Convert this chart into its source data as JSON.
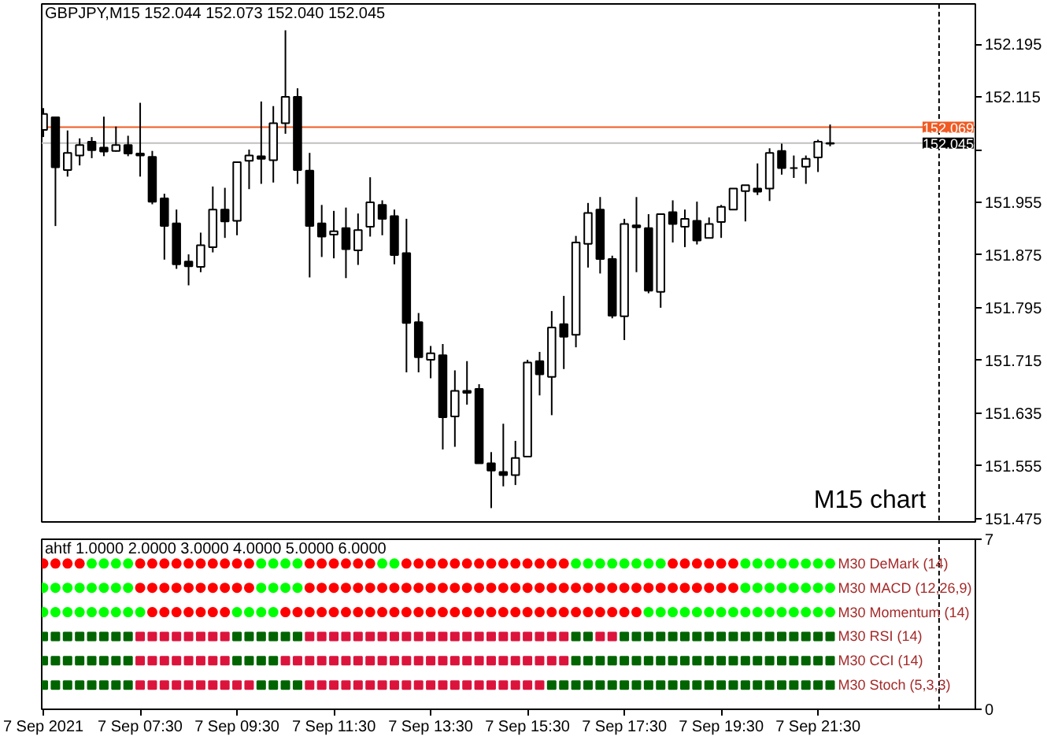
{
  "chart_data": [
    {
      "type": "candlestick",
      "title": "GBPJPY,M15  152.044 152.073 152.040 152.045",
      "x": [
        "2021-09-07T05:30",
        "2021-09-07T05:45",
        "2021-09-07T06:00",
        "2021-09-07T06:15",
        "2021-09-07T06:30",
        "2021-09-07T06:45",
        "2021-09-07T07:00",
        "2021-09-07T07:15",
        "2021-09-07T07:30",
        "2021-09-07T07:45",
        "2021-09-07T08:00",
        "2021-09-07T08:15",
        "2021-09-07T08:30",
        "2021-09-07T08:45",
        "2021-09-07T09:00",
        "2021-09-07T09:15",
        "2021-09-07T09:30",
        "2021-09-07T09:45",
        "2021-09-07T10:00",
        "2021-09-07T10:15",
        "2021-09-07T10:30",
        "2021-09-07T10:45",
        "2021-09-07T11:00",
        "2021-09-07T11:15",
        "2021-09-07T11:30",
        "2021-09-07T11:45",
        "2021-09-07T12:00",
        "2021-09-07T12:15",
        "2021-09-07T12:30",
        "2021-09-07T12:45",
        "2021-09-07T13:00",
        "2021-09-07T13:15",
        "2021-09-07T13:30",
        "2021-09-07T13:45",
        "2021-09-07T14:00",
        "2021-09-07T14:15",
        "2021-09-07T14:30",
        "2021-09-07T14:45",
        "2021-09-07T15:00",
        "2021-09-07T15:15",
        "2021-09-07T15:30",
        "2021-09-07T15:45",
        "2021-09-07T16:00",
        "2021-09-07T16:15",
        "2021-09-07T16:30",
        "2021-09-07T16:45",
        "2021-09-07T17:00",
        "2021-09-07T17:15",
        "2021-09-07T17:30",
        "2021-09-07T17:45",
        "2021-09-07T18:00",
        "2021-09-07T18:15",
        "2021-09-07T18:30",
        "2021-09-07T18:45",
        "2021-09-07T19:00",
        "2021-09-07T19:15",
        "2021-09-07T19:30",
        "2021-09-07T19:45",
        "2021-09-07T20:00",
        "2021-09-07T20:15",
        "2021-09-07T20:30",
        "2021-09-07T20:45",
        "2021-09-07T21:00",
        "2021-09-07T21:15",
        "2021-09-07T21:30",
        "2021-09-07T21:45"
      ],
      "ohlc": [
        [
          152.065,
          152.098,
          152.054,
          152.089
        ],
        [
          152.084,
          152.084,
          151.919,
          152.008
        ],
        [
          152.004,
          152.064,
          151.994,
          152.03
        ],
        [
          152.026,
          152.052,
          152.011,
          152.042
        ],
        [
          152.047,
          152.054,
          152.022,
          152.034
        ],
        [
          152.038,
          152.085,
          152.025,
          152.032
        ],
        [
          152.033,
          152.07,
          152.032,
          152.042
        ],
        [
          152.042,
          152.056,
          152.025,
          152.029
        ],
        [
          152.029,
          152.106,
          151.994,
          152.026
        ],
        [
          152.024,
          152.033,
          151.952,
          151.956
        ],
        [
          151.961,
          151.968,
          151.868,
          151.919
        ],
        [
          151.923,
          151.944,
          151.854,
          151.861
        ],
        [
          151.865,
          151.876,
          151.829,
          151.858
        ],
        [
          151.857,
          151.909,
          151.849,
          151.89
        ],
        [
          151.887,
          151.979,
          151.879,
          151.944
        ],
        [
          151.944,
          151.977,
          151.901,
          151.926
        ],
        [
          151.927,
          152.016,
          151.905,
          152.016
        ],
        [
          152.018,
          152.035,
          151.975,
          152.026
        ],
        [
          152.025,
          152.108,
          151.983,
          152.021
        ],
        [
          152.019,
          152.101,
          151.985,
          152.075
        ],
        [
          152.075,
          152.216,
          152.059,
          152.115
        ],
        [
          152.115,
          152.128,
          151.983,
          152.004
        ],
        [
          152.003,
          152.03,
          151.841,
          151.919
        ],
        [
          151.923,
          151.951,
          151.872,
          151.903
        ],
        [
          151.906,
          151.942,
          151.87,
          151.911
        ],
        [
          151.916,
          151.947,
          151.84,
          151.884
        ],
        [
          151.882,
          151.938,
          151.86,
          151.913
        ],
        [
          151.918,
          151.993,
          151.903,
          151.955
        ],
        [
          151.951,
          151.958,
          151.905,
          151.93
        ],
        [
          151.934,
          151.944,
          151.861,
          151.875
        ],
        [
          151.878,
          151.93,
          151.697,
          151.772
        ],
        [
          151.773,
          151.787,
          151.697,
          151.72
        ],
        [
          151.716,
          151.737,
          151.688,
          151.726
        ],
        [
          151.723,
          151.74,
          151.58,
          151.629
        ],
        [
          151.63,
          151.7,
          151.584,
          151.669
        ],
        [
          151.669,
          151.714,
          151.648,
          151.666
        ],
        [
          151.672,
          151.679,
          151.559,
          151.559
        ],
        [
          151.559,
          151.576,
          151.491,
          151.548
        ],
        [
          151.546,
          151.619,
          151.524,
          151.541
        ],
        [
          151.541,
          151.593,
          151.526,
          151.567
        ],
        [
          151.569,
          151.716,
          151.569,
          151.712
        ],
        [
          151.714,
          151.728,
          151.662,
          151.694
        ],
        [
          151.69,
          151.79,
          151.632,
          151.765
        ],
        [
          151.77,
          151.813,
          151.702,
          151.751
        ],
        [
          151.754,
          151.904,
          151.735,
          151.894
        ],
        [
          151.892,
          151.954,
          151.856,
          151.939
        ],
        [
          151.944,
          151.963,
          151.847,
          151.869
        ],
        [
          151.869,
          151.874,
          151.779,
          151.783
        ],
        [
          151.782,
          151.93,
          151.746,
          151.922
        ],
        [
          151.92,
          151.963,
          151.849,
          151.917
        ],
        [
          151.916,
          151.937,
          151.817,
          151.821
        ],
        [
          151.819,
          151.937,
          151.795,
          151.937
        ],
        [
          151.94,
          151.958,
          151.894,
          151.922
        ],
        [
          151.918,
          151.944,
          151.887,
          151.93
        ],
        [
          151.927,
          151.956,
          151.891,
          151.897
        ],
        [
          151.901,
          151.932,
          151.9,
          151.922
        ],
        [
          151.925,
          151.951,
          151.901,
          151.948
        ],
        [
          151.944,
          151.976,
          151.944,
          151.976
        ],
        [
          151.972,
          151.981,
          151.926,
          151.981
        ],
        [
          151.976,
          152.014,
          151.966,
          151.971
        ],
        [
          151.976,
          152.037,
          151.957,
          152.03
        ],
        [
          152.033,
          152.044,
          151.997,
          152.007
        ],
        [
          152.007,
          152.026,
          151.992,
          152.007
        ],
        [
          152.009,
          152.026,
          151.983,
          152.021
        ],
        [
          152.023,
          152.05,
          152.001,
          152.047
        ],
        [
          152.044,
          152.073,
          152.04,
          152.045
        ]
      ],
      "colors": [
        "#ffffff",
        "#000000",
        "#ffffff",
        "#ffffff",
        "#000000",
        "#000000",
        "#ffffff",
        "#000000",
        "#000000",
        "#000000",
        "#000000",
        "#000000",
        "#000000",
        "#ffffff",
        "#ffffff",
        "#000000",
        "#ffffff",
        "#ffffff",
        "#000000",
        "#ffffff",
        "#ffffff",
        "#000000",
        "#000000",
        "#000000",
        "#ffffff",
        "#000000",
        "#ffffff",
        "#ffffff",
        "#000000",
        "#000000",
        "#000000",
        "#000000",
        "#ffffff",
        "#000000",
        "#ffffff",
        "#000000",
        "#000000",
        "#000000",
        "#000000",
        "#ffffff",
        "#ffffff",
        "#000000",
        "#ffffff",
        "#000000",
        "#ffffff",
        "#ffffff",
        "#000000",
        "#000000",
        "#ffffff",
        "#000000",
        "#000000",
        "#ffffff",
        "#000000",
        "#ffffff",
        "#000000",
        "#ffffff",
        "#ffffff",
        "#ffffff",
        "#ffffff",
        "#000000",
        "#ffffff",
        "#000000",
        "#000000",
        "#ffffff",
        "#ffffff",
        "#ffffff"
      ],
      "xlim": [
        "2021-09-07T05:28",
        "2021-09-08T00:45"
      ],
      "ylim": [
        151.47,
        152.256
      ],
      "yticks": [
        152.195,
        152.115,
        {
          "value": 152.035,
          "label": null
        },
        151.955,
        151.875,
        151.795,
        151.715,
        151.635,
        151.555,
        151.475
      ],
      "tick_labels": "y",
      "ref_lines": [
        {
          "axis": "y",
          "value": 152.069,
          "label": "152.069",
          "color": "#f05a23"
        },
        {
          "axis": "y",
          "value": 152.045,
          "label": "152.045",
          "color": "#c0c0c0"
        },
        {
          "axis": "x",
          "value": "2021-09-08T00:00",
          "color": "#000000",
          "line_style": "dashed"
        }
      ],
      "annotations": [
        "M15  chart"
      ]
    },
    {
      "type": "scatter",
      "title": "ahtf 1.0000 2.0000 3.0000 4.0000 5.0000 6.0000",
      "x": [
        "2021-09-07T05:30",
        "2021-09-07T05:45",
        "2021-09-07T06:00",
        "2021-09-07T06:15",
        "2021-09-07T06:30",
        "2021-09-07T06:45",
        "2021-09-07T07:00",
        "2021-09-07T07:15",
        "2021-09-07T07:30",
        "2021-09-07T07:45",
        "2021-09-07T08:00",
        "2021-09-07T08:15",
        "2021-09-07T08:30",
        "2021-09-07T08:45",
        "2021-09-07T09:00",
        "2021-09-07T09:15",
        "2021-09-07T09:30",
        "2021-09-07T09:45",
        "2021-09-07T10:00",
        "2021-09-07T10:15",
        "2021-09-07T10:30",
        "2021-09-07T10:45",
        "2021-09-07T11:00",
        "2021-09-07T11:15",
        "2021-09-07T11:30",
        "2021-09-07T11:45",
        "2021-09-07T12:00",
        "2021-09-07T12:15",
        "2021-09-07T12:30",
        "2021-09-07T12:45",
        "2021-09-07T13:00",
        "2021-09-07T13:15",
        "2021-09-07T13:30",
        "2021-09-07T13:45",
        "2021-09-07T14:00",
        "2021-09-07T14:15",
        "2021-09-07T14:30",
        "2021-09-07T14:45",
        "2021-09-07T15:00",
        "2021-09-07T15:15",
        "2021-09-07T15:30",
        "2021-09-07T15:45",
        "2021-09-07T16:00",
        "2021-09-07T16:15",
        "2021-09-07T16:30",
        "2021-09-07T16:45",
        "2021-09-07T17:00",
        "2021-09-07T17:15",
        "2021-09-07T17:30",
        "2021-09-07T17:45",
        "2021-09-07T18:00",
        "2021-09-07T18:15",
        "2021-09-07T18:30",
        "2021-09-07T18:45",
        "2021-09-07T19:00",
        "2021-09-07T19:15",
        "2021-09-07T19:30",
        "2021-09-07T19:45",
        "2021-09-07T20:00",
        "2021-09-07T20:15",
        "2021-09-07T20:30",
        "2021-09-07T20:45",
        "2021-09-07T21:00",
        "2021-09-07T21:15",
        "2021-09-07T21:30",
        "2021-09-07T21:45"
      ],
      "series": [
        {
          "name": "M30 DeMark (14)",
          "marker": "circle",
          "values": [
            6,
            6,
            6,
            6,
            6,
            6,
            6,
            6,
            6,
            6,
            6,
            6,
            6,
            6,
            6,
            6,
            6,
            6,
            6,
            6,
            6,
            6,
            6,
            6,
            6,
            6,
            6,
            6,
            6,
            6,
            6,
            6,
            6,
            6,
            6,
            6,
            6,
            6,
            6,
            6,
            6,
            6,
            6,
            6,
            6,
            6,
            6,
            6,
            6,
            6,
            6,
            6,
            6,
            6,
            6,
            6,
            6,
            6,
            6,
            6,
            6,
            6,
            6,
            6,
            6,
            6
          ],
          "colors": [
            "#ff0000",
            "#ff0000",
            "#ff0000",
            "#ff0000",
            "#00ff00",
            "#00ff00",
            "#00ff00",
            "#00ff00",
            "#ff0000",
            "#ff0000",
            "#ff0000",
            "#ff0000",
            "#ff0000",
            "#ff0000",
            "#ff0000",
            "#ff0000",
            "#ff0000",
            "#ff0000",
            "#00ff00",
            "#00ff00",
            "#00ff00",
            "#00ff00",
            "#ff0000",
            "#ff0000",
            "#ff0000",
            "#ff0000",
            "#ff0000",
            "#ff0000",
            "#00ff00",
            "#00ff00",
            "#ff0000",
            "#ff0000",
            "#ff0000",
            "#ff0000",
            "#ff0000",
            "#ff0000",
            "#ff0000",
            "#ff0000",
            "#ff0000",
            "#ff0000",
            "#ff0000",
            "#ff0000",
            "#ff0000",
            "#ff0000",
            "#00ff00",
            "#00ff00",
            "#00ff00",
            "#00ff00",
            "#00ff00",
            "#00ff00",
            "#00ff00",
            "#00ff00",
            "#ff0000",
            "#ff0000",
            "#ff0000",
            "#ff0000",
            "#ff0000",
            "#ff0000",
            "#00ff00",
            "#00ff00",
            "#00ff00",
            "#00ff00",
            "#00ff00",
            "#00ff00",
            "#00ff00",
            "#00ff00"
          ]
        },
        {
          "name": "M30 MACD (12,26,9)",
          "marker": "circle",
          "values": [
            5,
            5,
            5,
            5,
            5,
            5,
            5,
            5,
            5,
            5,
            5,
            5,
            5,
            5,
            5,
            5,
            5,
            5,
            5,
            5,
            5,
            5,
            5,
            5,
            5,
            5,
            5,
            5,
            5,
            5,
            5,
            5,
            5,
            5,
            5,
            5,
            5,
            5,
            5,
            5,
            5,
            5,
            5,
            5,
            5,
            5,
            5,
            5,
            5,
            5,
            5,
            5,
            5,
            5,
            5,
            5,
            5,
            5,
            5,
            5,
            5,
            5,
            5,
            5,
            5,
            5
          ],
          "colors": [
            "#00ff00",
            "#00ff00",
            "#00ff00",
            "#00ff00",
            "#00ff00",
            "#00ff00",
            "#00ff00",
            "#00ff00",
            "#ff0000",
            "#ff0000",
            "#ff0000",
            "#ff0000",
            "#ff0000",
            "#ff0000",
            "#ff0000",
            "#ff0000",
            "#ff0000",
            "#ff0000",
            "#00ff00",
            "#00ff00",
            "#00ff00",
            "#00ff00",
            "#ff0000",
            "#ff0000",
            "#ff0000",
            "#ff0000",
            "#ff0000",
            "#ff0000",
            "#ff0000",
            "#ff0000",
            "#ff0000",
            "#ff0000",
            "#ff0000",
            "#ff0000",
            "#ff0000",
            "#ff0000",
            "#ff0000",
            "#ff0000",
            "#ff0000",
            "#ff0000",
            "#ff0000",
            "#ff0000",
            "#ff0000",
            "#ff0000",
            "#ff0000",
            "#ff0000",
            "#ff0000",
            "#ff0000",
            "#ff0000",
            "#ff0000",
            "#ff0000",
            "#ff0000",
            "#ff0000",
            "#ff0000",
            "#ff0000",
            "#ff0000",
            "#ff0000",
            "#ff0000",
            "#00ff00",
            "#00ff00",
            "#00ff00",
            "#00ff00",
            "#00ff00",
            "#00ff00",
            "#00ff00",
            "#00ff00"
          ]
        },
        {
          "name": "M30 Momentum (14)",
          "marker": "circle",
          "values": [
            4,
            4,
            4,
            4,
            4,
            4,
            4,
            4,
            4,
            4,
            4,
            4,
            4,
            4,
            4,
            4,
            4,
            4,
            4,
            4,
            4,
            4,
            4,
            4,
            4,
            4,
            4,
            4,
            4,
            4,
            4,
            4,
            4,
            4,
            4,
            4,
            4,
            4,
            4,
            4,
            4,
            4,
            4,
            4,
            4,
            4,
            4,
            4,
            4,
            4,
            4,
            4,
            4,
            4,
            4,
            4,
            4,
            4,
            4,
            4,
            4,
            4,
            4,
            4,
            4,
            4
          ],
          "colors": [
            "#00ff00",
            "#00ff00",
            "#00ff00",
            "#00ff00",
            "#00ff00",
            "#00ff00",
            "#00ff00",
            "#00ff00",
            "#00ff00",
            "#ff0000",
            "#ff0000",
            "#ff0000",
            "#ff0000",
            "#ff0000",
            "#ff0000",
            "#ff0000",
            "#00ff00",
            "#00ff00",
            "#00ff00",
            "#00ff00",
            "#ff0000",
            "#ff0000",
            "#ff0000",
            "#ff0000",
            "#ff0000",
            "#ff0000",
            "#ff0000",
            "#ff0000",
            "#ff0000",
            "#ff0000",
            "#ff0000",
            "#ff0000",
            "#ff0000",
            "#ff0000",
            "#ff0000",
            "#ff0000",
            "#ff0000",
            "#ff0000",
            "#ff0000",
            "#ff0000",
            "#ff0000",
            "#ff0000",
            "#ff0000",
            "#ff0000",
            "#ff0000",
            "#ff0000",
            "#ff0000",
            "#ff0000",
            "#ff0000",
            "#ff0000",
            "#00ff00",
            "#00ff00",
            "#00ff00",
            "#00ff00",
            "#00ff00",
            "#00ff00",
            "#00ff00",
            "#00ff00",
            "#00ff00",
            "#00ff00",
            "#00ff00",
            "#00ff00",
            "#00ff00",
            "#00ff00",
            "#00ff00",
            "#00ff00"
          ]
        },
        {
          "name": "M30 RSI (14)",
          "marker": "square",
          "values": [
            3,
            3,
            3,
            3,
            3,
            3,
            3,
            3,
            3,
            3,
            3,
            3,
            3,
            3,
            3,
            3,
            3,
            3,
            3,
            3,
            3,
            3,
            3,
            3,
            3,
            3,
            3,
            3,
            3,
            3,
            3,
            3,
            3,
            3,
            3,
            3,
            3,
            3,
            3,
            3,
            3,
            3,
            3,
            3,
            3,
            3,
            3,
            3,
            3,
            3,
            3,
            3,
            3,
            3,
            3,
            3,
            3,
            3,
            3,
            3,
            3,
            3,
            3,
            3,
            3,
            3
          ],
          "colors": [
            "#006400",
            "#006400",
            "#006400",
            "#006400",
            "#006400",
            "#006400",
            "#006400",
            "#006400",
            "#dc143c",
            "#dc143c",
            "#dc143c",
            "#dc143c",
            "#dc143c",
            "#dc143c",
            "#dc143c",
            "#dc143c",
            "#006400",
            "#006400",
            "#006400",
            "#006400",
            "#006400",
            "#006400",
            "#dc143c",
            "#dc143c",
            "#dc143c",
            "#dc143c",
            "#dc143c",
            "#dc143c",
            "#dc143c",
            "#dc143c",
            "#dc143c",
            "#dc143c",
            "#dc143c",
            "#dc143c",
            "#dc143c",
            "#dc143c",
            "#dc143c",
            "#dc143c",
            "#dc143c",
            "#dc143c",
            "#dc143c",
            "#dc143c",
            "#dc143c",
            "#dc143c",
            "#006400",
            "#006400",
            "#dc143c",
            "#dc143c",
            "#006400",
            "#006400",
            "#006400",
            "#006400",
            "#006400",
            "#006400",
            "#006400",
            "#006400",
            "#006400",
            "#006400",
            "#006400",
            "#006400",
            "#006400",
            "#006400",
            "#006400",
            "#006400",
            "#006400",
            "#006400"
          ]
        },
        {
          "name": "M30 CCI (14)",
          "marker": "square",
          "values": [
            2,
            2,
            2,
            2,
            2,
            2,
            2,
            2,
            2,
            2,
            2,
            2,
            2,
            2,
            2,
            2,
            2,
            2,
            2,
            2,
            2,
            2,
            2,
            2,
            2,
            2,
            2,
            2,
            2,
            2,
            2,
            2,
            2,
            2,
            2,
            2,
            2,
            2,
            2,
            2,
            2,
            2,
            2,
            2,
            2,
            2,
            2,
            2,
            2,
            2,
            2,
            2,
            2,
            2,
            2,
            2,
            2,
            2,
            2,
            2,
            2,
            2,
            2,
            2,
            2,
            2
          ],
          "colors": [
            "#006400",
            "#006400",
            "#006400",
            "#006400",
            "#006400",
            "#006400",
            "#006400",
            "#006400",
            "#dc143c",
            "#dc143c",
            "#dc143c",
            "#dc143c",
            "#dc143c",
            "#dc143c",
            "#dc143c",
            "#dc143c",
            "#006400",
            "#006400",
            "#006400",
            "#006400",
            "#dc143c",
            "#dc143c",
            "#dc143c",
            "#dc143c",
            "#dc143c",
            "#dc143c",
            "#dc143c",
            "#dc143c",
            "#dc143c",
            "#dc143c",
            "#dc143c",
            "#dc143c",
            "#dc143c",
            "#dc143c",
            "#dc143c",
            "#dc143c",
            "#dc143c",
            "#dc143c",
            "#dc143c",
            "#dc143c",
            "#dc143c",
            "#dc143c",
            "#dc143c",
            "#dc143c",
            "#006400",
            "#006400",
            "#006400",
            "#006400",
            "#006400",
            "#006400",
            "#006400",
            "#006400",
            "#006400",
            "#006400",
            "#006400",
            "#006400",
            "#006400",
            "#006400",
            "#006400",
            "#006400",
            "#006400",
            "#006400",
            "#006400",
            "#006400",
            "#006400",
            "#006400"
          ]
        },
        {
          "name": "M30 Stoch (5,3,3)",
          "marker": "square",
          "values": [
            1,
            1,
            1,
            1,
            1,
            1,
            1,
            1,
            1,
            1,
            1,
            1,
            1,
            1,
            1,
            1,
            1,
            1,
            1,
            1,
            1,
            1,
            1,
            1,
            1,
            1,
            1,
            1,
            1,
            1,
            1,
            1,
            1,
            1,
            1,
            1,
            1,
            1,
            1,
            1,
            1,
            1,
            1,
            1,
            1,
            1,
            1,
            1,
            1,
            1,
            1,
            1,
            1,
            1,
            1,
            1,
            1,
            1,
            1,
            1,
            1,
            1,
            1,
            1,
            1,
            1
          ],
          "colors": [
            "#006400",
            "#006400",
            "#006400",
            "#006400",
            "#006400",
            "#006400",
            "#006400",
            "#006400",
            "#dc143c",
            "#dc143c",
            "#dc143c",
            "#dc143c",
            "#dc143c",
            "#dc143c",
            "#dc143c",
            "#dc143c",
            "#dc143c",
            "#dc143c",
            "#006400",
            "#006400",
            "#006400",
            "#006400",
            "#dc143c",
            "#dc143c",
            "#dc143c",
            "#dc143c",
            "#dc143c",
            "#dc143c",
            "#dc143c",
            "#dc143c",
            "#dc143c",
            "#dc143c",
            "#dc143c",
            "#dc143c",
            "#dc143c",
            "#dc143c",
            "#dc143c",
            "#dc143c",
            "#dc143c",
            "#dc143c",
            "#dc143c",
            "#dc143c",
            "#006400",
            "#006400",
            "#006400",
            "#006400",
            "#006400",
            "#006400",
            "#006400",
            "#006400",
            "#006400",
            "#006400",
            "#006400",
            "#006400",
            "#006400",
            "#006400",
            "#006400",
            "#006400",
            "#006400",
            "#006400",
            "#006400",
            "#006400",
            "#006400",
            "#006400",
            "#006400",
            "#006400"
          ]
        }
      ],
      "xlim": [
        "2021-09-07T05:28",
        "2021-09-08T00:45"
      ],
      "ylim": [
        0,
        7
      ],
      "yticks": [
        0,
        7
      ],
      "xticks": [
        {
          "value": "2021-09-07T05:30",
          "label": "7 Sep 2021"
        },
        {
          "value": "2021-09-07T07:30",
          "label": "7 Sep 07:30"
        },
        {
          "value": "2021-09-07T09:30",
          "label": "7 Sep 09:30"
        },
        {
          "value": "2021-09-07T11:30",
          "label": "7 Sep 11:30"
        },
        {
          "value": "2021-09-07T13:30",
          "label": "7 Sep 13:30"
        },
        {
          "value": "2021-09-07T15:30",
          "label": "7 Sep 15:30"
        },
        {
          "value": "2021-09-07T17:30",
          "label": "7 Sep 17:30"
        },
        {
          "value": "2021-09-07T19:30",
          "label": "7 Sep 19:30"
        },
        {
          "value": "2021-09-07T21:30",
          "label": "7 Sep 21:30"
        }
      ],
      "ref_lines": [
        {
          "axis": "x",
          "value": "2021-09-08T00:00",
          "color": "#000000",
          "line_style": "dashed"
        }
      ]
    }
  ]
}
